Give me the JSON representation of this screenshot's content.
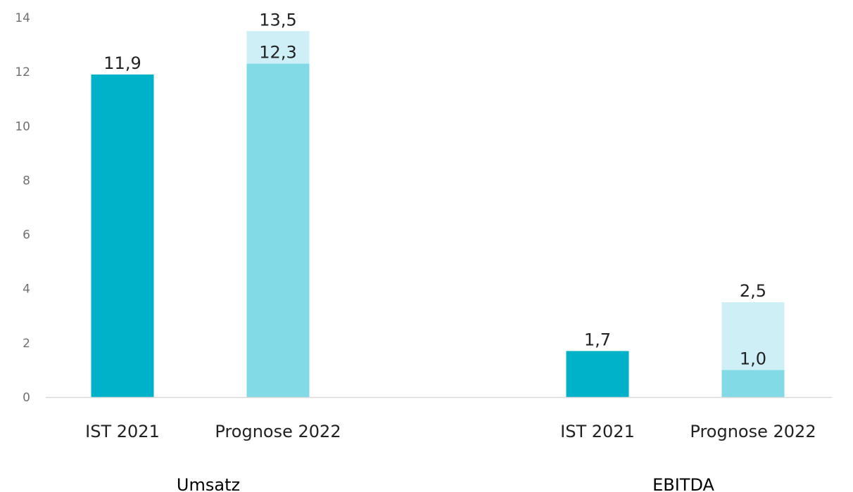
{
  "chart_data": {
    "type": "bar",
    "stacked": true,
    "ylim": [
      0,
      14
    ],
    "yticks": [
      0,
      2,
      4,
      6,
      8,
      10,
      12,
      14
    ],
    "grid": false,
    "legend": "none",
    "groups": [
      {
        "label": "Umsatz",
        "bars": [
          {
            "label": "IST 2021",
            "segments": [
              {
                "value": 11.9,
                "label": "11,9",
                "color": "#00B2C9"
              }
            ]
          },
          {
            "label": "Prognose 2022",
            "segments": [
              {
                "value": 12.3,
                "label": "12,3",
                "color": "#81DAE6"
              },
              {
                "value": 1.2,
                "label": "13,5",
                "color": "#CDEFF5"
              }
            ]
          }
        ]
      },
      {
        "label": "EBITDA",
        "bars": [
          {
            "label": "IST 2021",
            "segments": [
              {
                "value": 1.7,
                "label": "1,7",
                "color": "#00B2C9"
              }
            ]
          },
          {
            "label": "Prognose 2022",
            "segments": [
              {
                "value": 1.0,
                "label": "1,0",
                "color": "#81DAE6"
              },
              {
                "value": 2.5,
                "label": "2,5",
                "color": "#CDEFF5"
              }
            ]
          }
        ]
      }
    ],
    "axis_color": "#D9D9D9"
  }
}
